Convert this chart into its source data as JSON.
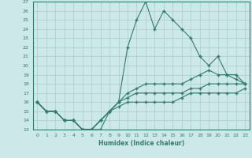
{
  "xlabel": "Humidex (Indice chaleur)",
  "x": [
    0,
    1,
    2,
    3,
    4,
    5,
    6,
    7,
    8,
    9,
    10,
    11,
    12,
    13,
    14,
    15,
    16,
    17,
    18,
    19,
    20,
    21,
    22,
    23
  ],
  "line1": [
    16,
    15,
    15,
    14,
    14,
    13,
    13,
    13,
    15,
    16,
    22,
    25,
    27,
    24,
    26,
    25,
    24,
    23,
    21,
    20,
    21,
    19,
    19,
    18
  ],
  "line2": [
    16,
    15,
    15,
    14,
    14,
    13,
    13,
    14,
    15,
    16,
    17,
    17.5,
    18,
    18,
    18,
    18,
    18,
    18.5,
    19,
    19.5,
    19,
    19,
    18.5,
    18
  ],
  "line3": [
    16,
    15,
    15,
    14,
    14,
    13,
    13,
    14,
    15,
    16,
    16.5,
    17,
    17,
    17,
    17,
    17,
    17,
    17.5,
    17.5,
    18,
    18,
    18,
    18,
    18
  ],
  "line4": [
    16,
    15,
    15,
    14,
    14,
    13,
    13,
    14,
    15,
    15.5,
    16,
    16,
    16,
    16,
    16,
    16,
    16.5,
    17,
    17,
    17,
    17,
    17,
    17,
    17.5
  ],
  "line_color": "#2e7d6e",
  "bg_color": "#cce8e8",
  "grid_color": "#aacccc",
  "ylim": [
    13,
    27
  ],
  "xlim": [
    -0.5,
    23.5
  ],
  "yticks": [
    13,
    14,
    15,
    16,
    17,
    18,
    19,
    20,
    21,
    22,
    23,
    24,
    25,
    26,
    27
  ],
  "xticks": [
    0,
    1,
    2,
    3,
    4,
    5,
    6,
    7,
    8,
    9,
    10,
    11,
    12,
    13,
    14,
    15,
    16,
    17,
    18,
    19,
    20,
    21,
    22,
    23
  ]
}
